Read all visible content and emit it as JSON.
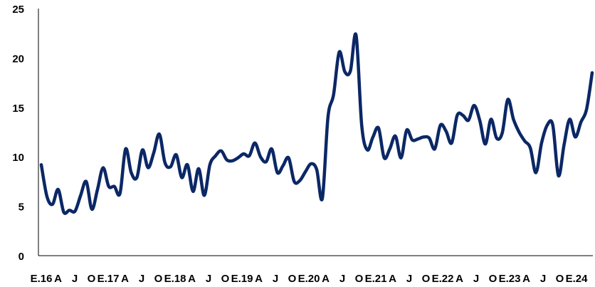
{
  "chart_data": {
    "type": "line",
    "title": "",
    "xlabel": "",
    "ylabel": "",
    "ylim": [
      0,
      25
    ],
    "y_ticks": [
      0,
      5,
      10,
      15,
      20,
      25
    ],
    "grid": false,
    "legend": "none",
    "x_tick_labels": [
      "E.16",
      "A",
      "J",
      "O",
      "E.17",
      "A",
      "J",
      "O",
      "E.18",
      "A",
      "J",
      "O",
      "E.19",
      "A",
      "J",
      "O",
      "E.20",
      "A",
      "J",
      "O",
      "E.21",
      "A",
      "J",
      "O",
      "E.22",
      "A",
      "J",
      "O",
      "E.23",
      "A",
      "J",
      "O",
      "E.24"
    ],
    "colors": {
      "line": "#0b2765",
      "axis": "#000000"
    },
    "series": [
      {
        "values": [
          9.2,
          6.0,
          5.2,
          6.7,
          4.4,
          4.6,
          4.5,
          6.1,
          7.5,
          4.7,
          6.7,
          8.9,
          7.0,
          7.0,
          6.3,
          10.8,
          8.4,
          7.9,
          10.7,
          8.9,
          10.4,
          12.3,
          9.4,
          9.0,
          10.2,
          7.9,
          9.2,
          6.5,
          8.8,
          6.1,
          9.2,
          10.1,
          10.6,
          9.7,
          9.6,
          9.9,
          10.3,
          10.1,
          11.4,
          10.0,
          9.5,
          10.8,
          8.4,
          9.1,
          9.9,
          7.5,
          7.6,
          8.5,
          9.3,
          8.7,
          5.8,
          14.0,
          16.3,
          20.6,
          18.6,
          18.7,
          22.3,
          13.2,
          10.7,
          12.0,
          12.9,
          9.9,
          10.8,
          12.1,
          9.9,
          12.7,
          11.7,
          11.8,
          12.0,
          11.9,
          10.8,
          13.2,
          12.6,
          11.4,
          14.2,
          14.2,
          13.7,
          15.2,
          13.7,
          11.3,
          13.8,
          11.9,
          12.4,
          15.8,
          13.8,
          12.5,
          11.6,
          10.9,
          8.4,
          11.4,
          13.2,
          13.2,
          8.1,
          11.2,
          13.8,
          12.0,
          13.5,
          14.8,
          18.5
        ]
      }
    ]
  }
}
